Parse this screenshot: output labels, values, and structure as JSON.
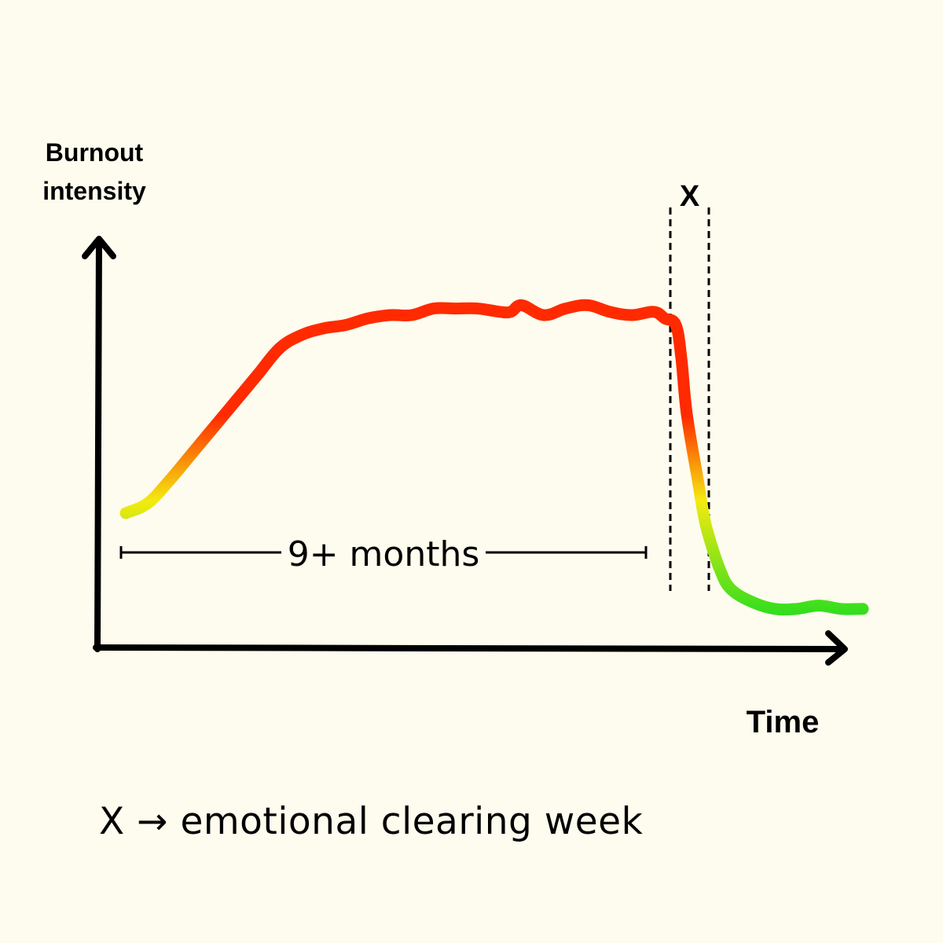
{
  "chart_data": {
    "type": "line",
    "ylabel_line1": "Burnout",
    "ylabel_line2": "intensity",
    "xlabel": "Time",
    "marker_label": "X",
    "span_label": "9+ months",
    "legend_text": "X → emotional clearing week",
    "colors": {
      "low": "#1FDD1F",
      "mid": "#F4EA10",
      "high": "#FF2A00",
      "background": "#FEFCEE",
      "axis": "#000000"
    },
    "series": [
      {
        "values": [
          [
            0.0,
            0.35
          ],
          [
            0.04,
            0.38
          ],
          [
            0.08,
            0.45
          ],
          [
            0.12,
            0.53
          ],
          [
            0.16,
            0.61
          ],
          [
            0.2,
            0.69
          ],
          [
            0.24,
            0.77
          ],
          [
            0.28,
            0.85
          ],
          [
            0.32,
            0.89
          ],
          [
            0.36,
            0.91
          ],
          [
            0.4,
            0.92
          ],
          [
            0.44,
            0.94
          ],
          [
            0.48,
            0.95
          ],
          [
            0.52,
            0.95
          ],
          [
            0.56,
            0.97
          ],
          [
            0.6,
            0.97
          ],
          [
            0.64,
            0.97
          ],
          [
            0.68,
            0.96
          ],
          [
            0.7,
            0.96
          ],
          [
            0.72,
            0.98
          ],
          [
            0.76,
            0.95
          ],
          [
            0.8,
            0.97
          ],
          [
            0.84,
            0.98
          ],
          [
            0.88,
            0.96
          ],
          [
            0.92,
            0.95
          ],
          [
            0.96,
            0.96
          ],
          [
            0.98,
            0.94
          ],
          [
            1.0,
            0.92
          ],
          [
            1.01,
            0.82
          ],
          [
            1.02,
            0.65
          ],
          [
            1.04,
            0.45
          ],
          [
            1.05,
            0.35
          ],
          [
            1.06,
            0.28
          ],
          [
            1.08,
            0.18
          ],
          [
            1.1,
            0.12
          ],
          [
            1.14,
            0.08
          ],
          [
            1.18,
            0.06
          ],
          [
            1.22,
            0.06
          ],
          [
            1.26,
            0.07
          ],
          [
            1.3,
            0.06
          ],
          [
            1.34,
            0.06
          ]
        ]
      }
    ],
    "marker_window": [
      0.99,
      1.06
    ],
    "span_window": [
      0.0,
      0.96
    ]
  }
}
